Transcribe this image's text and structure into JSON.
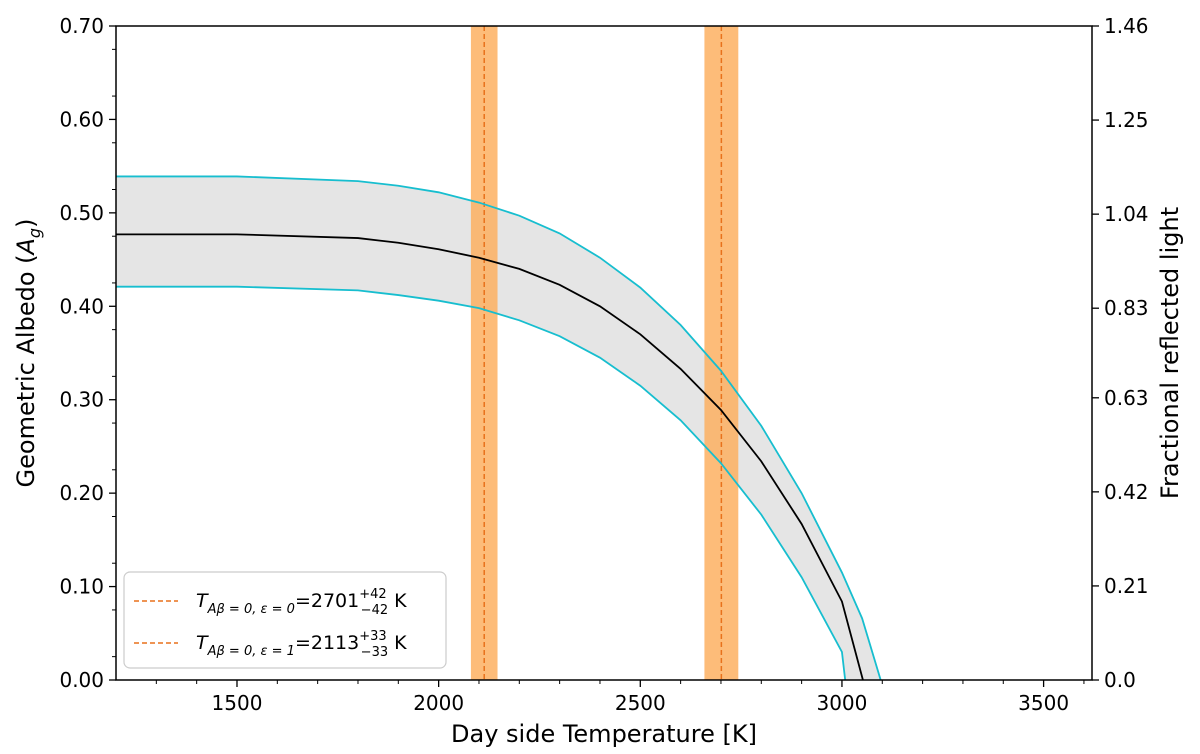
{
  "chart_data": {
    "type": "line",
    "xlabel": "Day side Temperature [K]",
    "ylabel_left": "Geometric Albedo (",
    "ylabel_left_symbol": "A",
    "ylabel_left_sub": "g",
    "ylabel_left_close": ")",
    "ylabel_right": "Fractional reflected light",
    "xlim": [
      1200,
      3620
    ],
    "ylim": [
      0,
      0.7
    ],
    "y2lim": [
      0,
      1.46
    ],
    "x_ticks": [
      1500,
      2000,
      2500,
      3000,
      3500
    ],
    "x_tick_labels": [
      "1500",
      "2000",
      "2500",
      "3000",
      "3500"
    ],
    "y_ticks": [
      0,
      0.1,
      0.2,
      0.3,
      0.4,
      0.5,
      0.6,
      0.7
    ],
    "y_tick_labels": [
      "0.00",
      "0.10",
      "0.20",
      "0.30",
      "0.40",
      "0.50",
      "0.60",
      "0.70"
    ],
    "y2_ticks": [
      0,
      0.21,
      0.42,
      0.63,
      0.83,
      1.04,
      1.25,
      1.46
    ],
    "y2_tick_labels": [
      "0.0",
      "0.21",
      "0.42",
      "0.63",
      "0.83",
      "1.04",
      "1.25",
      "1.46"
    ],
    "grid": false,
    "legend_placement": "lower-left",
    "series": [
      {
        "role": "upper-bound",
        "color": "#17becf",
        "x": [
          1200,
          1500,
          1800,
          1900,
          2000,
          2100,
          2200,
          2300,
          2400,
          2500,
          2600,
          2700,
          2800,
          2900,
          3000,
          3050,
          3096
        ],
        "y": [
          0.539,
          0.539,
          0.534,
          0.529,
          0.522,
          0.511,
          0.497,
          0.478,
          0.452,
          0.42,
          0.38,
          0.331,
          0.272,
          0.2,
          0.115,
          0.066,
          0.0
        ]
      },
      {
        "role": "central",
        "color": "#000000",
        "x": [
          1200,
          1500,
          1800,
          1900,
          2000,
          2100,
          2200,
          2300,
          2400,
          2500,
          2600,
          2700,
          2800,
          2900,
          3000,
          3052
        ],
        "y": [
          0.477,
          0.477,
          0.473,
          0.468,
          0.461,
          0.452,
          0.44,
          0.423,
          0.4,
          0.37,
          0.333,
          0.289,
          0.234,
          0.167,
          0.084,
          0.0
        ]
      },
      {
        "role": "lower-bound",
        "color": "#17becf",
        "x": [
          1200,
          1500,
          1800,
          1900,
          2000,
          2100,
          2200,
          2300,
          2400,
          2500,
          2600,
          2700,
          2800,
          2900,
          3000,
          3008
        ],
        "y": [
          0.421,
          0.421,
          0.417,
          0.412,
          0.406,
          0.398,
          0.385,
          0.368,
          0.345,
          0.315,
          0.278,
          0.232,
          0.177,
          0.11,
          0.03,
          0.0
        ]
      }
    ],
    "vertical_bands": [
      {
        "center": 2113,
        "err_plus": 33,
        "err_minus": 33
      },
      {
        "center": 2701,
        "err_plus": 42,
        "err_minus": 42
      }
    ],
    "band_color": "#fdb062",
    "marker_line_color": "#e8711b",
    "fill_color": "#e5e5e5",
    "legend": [
      {
        "symbol": "T",
        "subscript": "Aβ = 0, ε = 0",
        "value": "=2701",
        "sup": "+42",
        "sub": "−42",
        "unit": " K"
      },
      {
        "symbol": "T",
        "subscript": "Aβ = 0, ε = 1",
        "value": "=2113",
        "sup": "+33",
        "sub": "−33",
        "unit": " K"
      }
    ]
  }
}
